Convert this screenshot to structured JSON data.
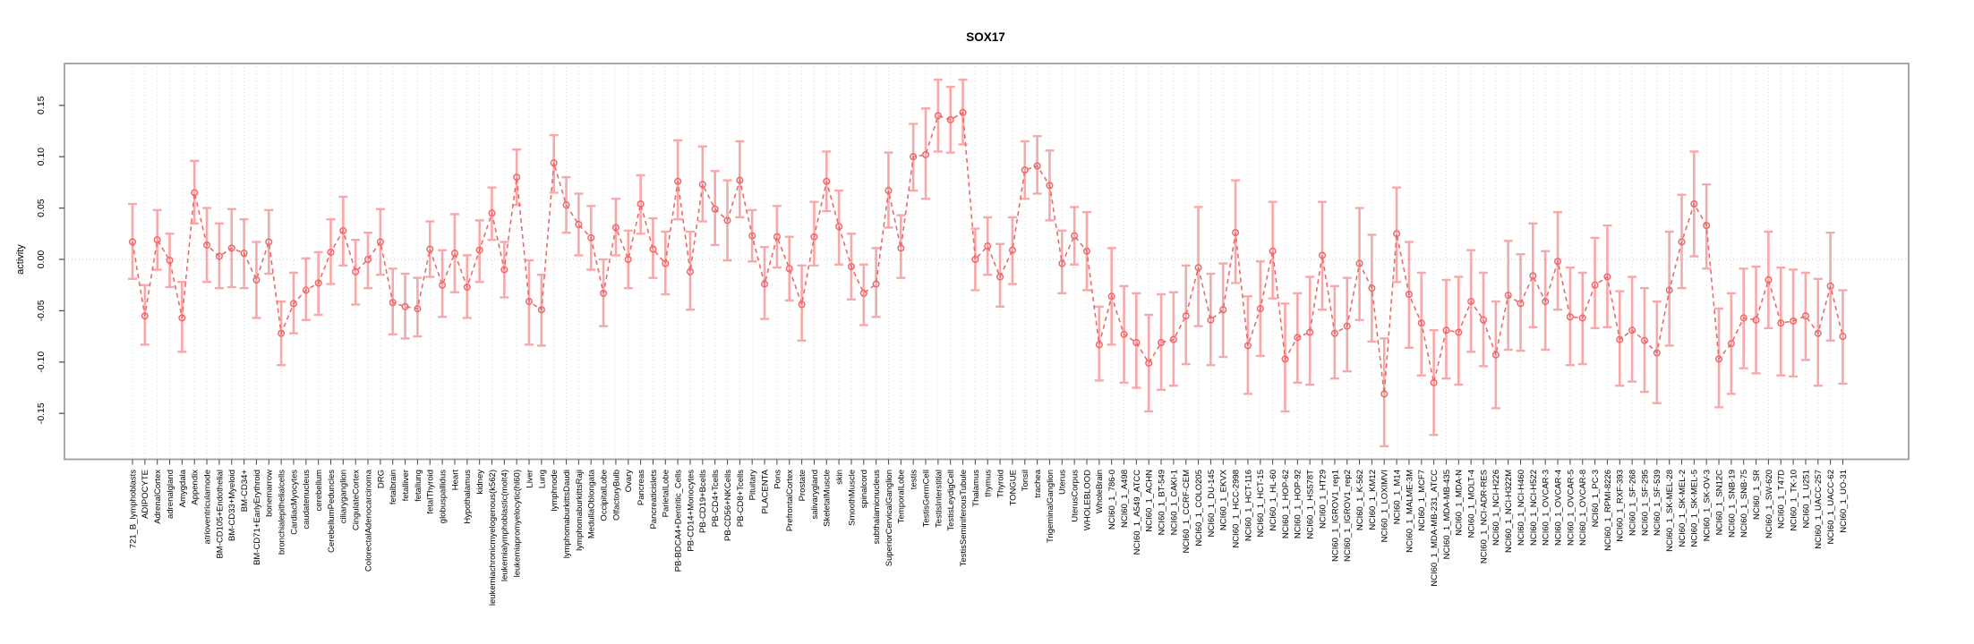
{
  "page": {
    "background": "#ffffff"
  },
  "chart_data": {
    "type": "line",
    "title": "SOX17",
    "xlabel": "",
    "ylabel": "activity",
    "legend": "none",
    "grid": "vertical dotted gridline per category; horizontal dotted line at zero",
    "marker": "open-circle",
    "line_style": "dashed",
    "series_color": "#ee6a6a",
    "errorbar_color": "#f7a8a8",
    "gridline_color": "#dcdcdc",
    "box_color": "#9e9e9e",
    "ylim": [
      -0.19,
      0.19
    ],
    "yticks": [
      -0.15,
      -0.1,
      -0.05,
      0.0,
      0.05,
      0.1,
      0.15
    ],
    "ytick_labels": [
      "-0.15",
      "-0.10",
      "-0.05",
      "0.00",
      "0.05",
      "0.10",
      "0.15"
    ],
    "categories": [
      "721_B_lymphoblasts",
      "ADIPOCYTE",
      "AdrenalCortex",
      "adrenalgland",
      "Amygdala",
      "Appendix",
      "atrioventricularnode",
      "BM-CD105+Endothelial",
      "BM-CD33+Myeloid",
      "BM-CD34+",
      "BM-CD71+EarlyErythroid",
      "bonemarrow",
      "bronchialepithelialcells",
      "CardiacMyocytes",
      "caudatenucleus",
      "cerebellum",
      "CerebellumPeduncles",
      "ciliaryganglion",
      "CingulateCortex",
      "ColorectalAdenocarcinoma",
      "DRG",
      "fetalbrain",
      "fetalliver",
      "fetallung",
      "fetalThyroid",
      "globuspallidus",
      "Heart",
      "Hypothalamus",
      "kidney",
      "leukemiachronicmyelogenous(k562)",
      "leukemialymphoblastic(molt4)",
      "leukemiapromyelocytic(hl60)",
      "Liver",
      "Lung",
      "lymphnode",
      "lymphomaburkittsDaudi",
      "lymphomaburkittsRaji",
      "MedullaOblongata",
      "OccipitalLobe",
      "OlfactoryBulb",
      "Ovary",
      "Pancreas",
      "Pancreaticislets",
      "ParietalLobe",
      "PB-BDCA4+Dentritic_Cells",
      "PB-CD14+Monocytes",
      "PB-CD19+Bcells",
      "PB-CD4+Tcells",
      "PB-CD56+NKCells",
      "PB-CD8+Tcells",
      "Pituitary",
      "PLACENTA",
      "Pons",
      "PrefrontalCortex",
      "Prostate",
      "salivarygland",
      "SkeletalMuscle",
      "skin",
      "SmoothMuscle",
      "spinalcord",
      "subthalamicnucleus",
      "SuperiorCervicalGanglion",
      "TemporalLobe",
      "testis",
      "TestisGermCell",
      "TestisInterstitial",
      "TestisLeydigCell",
      "TestisSeminiferousTubule",
      "Thalamus",
      "thymus",
      "Thyroid",
      "TONGUE",
      "Tonsil",
      "trachea",
      "TrigeminalGanglion",
      "Uterus",
      "UterusCorpus",
      "WHOLEBLOOD",
      "WholeBrain",
      "NCI60_1_786-0",
      "NCI60_1_A498",
      "NCI60_1_A549_ATCC",
      "NCI60_1_ACHN",
      "NCI60_1_BT-549",
      "NCI60_1_CAKI-1",
      "NCI60_1_CCRF-CEM",
      "NCI60_1_COLO205",
      "NCI60_1_DU-145",
      "NCI60_1_EKVX",
      "NCI60_1_HCC-2998",
      "NCI60_1_HCT-116",
      "NCI60_1_HCT-15",
      "NCI60_1_HL-60",
      "NCI60_1_HOP-62",
      "NCI60_1_HOP-92",
      "NCI60_1_HS578T",
      "NCI60_1_HT29",
      "NCI60_1_IGROV1_rep1",
      "NCI60_1_IGROV1_rep2",
      "NCI60_1_K-562",
      "NCI60_1_KM12",
      "NCI60_1_LOXIMVI",
      "NCI60_1_M14",
      "NCI60_1_MALME-3M",
      "NCI60_1_MCF7",
      "NCI60_1_MDA-MB-231_ATCC",
      "NCI60_1_MDA-MB-435",
      "NCI60_1_MDA-N",
      "NCI60_1_MOLT-4",
      "NCI60_1_NCI-ADR-RES",
      "NCI60_1_NCI-H226",
      "NCI60_1_NCI-H322M",
      "NCI60_1_NCI-H460",
      "NCI60_1_NCI-H522",
      "NCI60_1_OVCAR-3",
      "NCI60_1_OVCAR-4",
      "NCI60_1_OVCAR-5",
      "NCI60_1_OVCAR-8",
      "NCI60_1_PC-3",
      "NCI60_1_RPMI-8226",
      "NCI60_1_RXF-393",
      "NCI60_1_SF-268",
      "NCI60_1_SF-295",
      "NCI60_1_SF-539",
      "NCI60_1_SK-MEL-28",
      "NCI60_1_SK-MEL-2",
      "NCI60_1_SK-MEL-5",
      "NCI60_1_SK-OV-3",
      "NCI60_1_SN12C",
      "NCI60_1_SNB-19",
      "NCI60_1_SNB-75",
      "NCI60_1_SR",
      "NCI60_1_SW-620",
      "NCI60_1_T47D",
      "NCI60_1_TK-10",
      "NCI60_1_U251",
      "NCI60_1_UACC-257",
      "NCI60_1_UACC-62",
      "NCI60_1_UO-31"
    ],
    "values": [
      0.017,
      -0.055,
      0.019,
      -0.001,
      -0.057,
      0.065,
      0.014,
      0.003,
      0.011,
      0.006,
      -0.02,
      0.017,
      -0.072,
      -0.043,
      -0.03,
      -0.023,
      0.007,
      0.028,
      -0.012,
      0.0,
      0.017,
      -0.042,
      -0.046,
      -0.048,
      0.01,
      -0.025,
      0.006,
      -0.027,
      0.009,
      0.045,
      -0.01,
      0.08,
      -0.041,
      -0.049,
      0.094,
      0.053,
      0.034,
      0.021,
      -0.033,
      0.031,
      0.0,
      0.054,
      0.01,
      -0.004,
      0.076,
      -0.012,
      0.073,
      0.049,
      0.038,
      0.077,
      0.023,
      -0.024,
      0.022,
      -0.009,
      -0.044,
      0.022,
      0.076,
      0.032,
      -0.007,
      -0.033,
      -0.024,
      0.067,
      0.011,
      0.1,
      0.102,
      0.14,
      0.136,
      0.143,
      0.0,
      0.013,
      -0.017,
      0.009,
      0.087,
      0.091,
      0.072,
      -0.004,
      0.023,
      0.008,
      -0.083,
      -0.036,
      -0.073,
      -0.081,
      -0.101,
      -0.081,
      -0.078,
      -0.055,
      -0.008,
      -0.059,
      -0.049,
      0.026,
      -0.084,
      -0.048,
      0.008,
      -0.097,
      -0.076,
      -0.071,
      0.004,
      -0.072,
      -0.065,
      -0.004,
      -0.028,
      -0.131,
      0.025,
      -0.034,
      -0.062,
      -0.12,
      -0.069,
      -0.071,
      -0.041,
      -0.059,
      -0.093,
      -0.035,
      -0.043,
      -0.016,
      -0.041,
      -0.002,
      -0.056,
      -0.057,
      -0.025,
      -0.017,
      -0.078,
      -0.069,
      -0.079,
      -0.091,
      -0.03,
      0.017,
      0.054,
      0.033,
      -0.097,
      -0.082,
      -0.057,
      -0.059,
      -0.02,
      -0.062,
      -0.06,
      -0.055,
      -0.072,
      -0.026,
      -0.075
    ],
    "err_low": [
      -0.019,
      -0.083,
      -0.01,
      -0.027,
      -0.09,
      0.035,
      -0.022,
      -0.028,
      -0.027,
      -0.028,
      -0.057,
      -0.014,
      -0.103,
      -0.072,
      -0.059,
      -0.054,
      -0.024,
      -0.006,
      -0.044,
      -0.028,
      -0.015,
      -0.073,
      -0.077,
      -0.075,
      -0.017,
      -0.056,
      -0.032,
      -0.057,
      -0.022,
      0.019,
      -0.037,
      0.053,
      -0.083,
      -0.084,
      0.065,
      0.026,
      0.004,
      -0.01,
      -0.065,
      0.004,
      -0.028,
      0.025,
      -0.018,
      -0.034,
      0.039,
      -0.049,
      0.037,
      0.014,
      -0.001,
      0.041,
      -0.002,
      -0.058,
      -0.008,
      -0.04,
      -0.079,
      -0.006,
      0.047,
      -0.005,
      -0.039,
      -0.064,
      -0.056,
      0.031,
      -0.018,
      0.067,
      0.059,
      0.105,
      0.104,
      0.112,
      -0.03,
      -0.015,
      -0.046,
      -0.024,
      0.059,
      0.064,
      0.038,
      -0.033,
      -0.005,
      -0.03,
      -0.118,
      -0.083,
      -0.12,
      -0.125,
      -0.148,
      -0.127,
      -0.123,
      -0.102,
      -0.065,
      -0.103,
      -0.095,
      -0.023,
      -0.131,
      -0.094,
      -0.038,
      -0.148,
      -0.12,
      -0.122,
      -0.049,
      -0.116,
      -0.109,
      -0.059,
      -0.08,
      -0.182,
      -0.022,
      -0.086,
      -0.113,
      -0.171,
      -0.116,
      -0.122,
      -0.09,
      -0.104,
      -0.145,
      -0.088,
      -0.089,
      -0.066,
      -0.088,
      -0.049,
      -0.103,
      -0.102,
      -0.067,
      -0.066,
      -0.123,
      -0.119,
      -0.129,
      -0.14,
      -0.084,
      -0.028,
      0.003,
      -0.009,
      -0.144,
      -0.131,
      -0.106,
      -0.111,
      -0.067,
      -0.113,
      -0.114,
      -0.098,
      -0.123,
      -0.079,
      -0.121
    ],
    "err_high": [
      0.054,
      -0.025,
      0.048,
      0.025,
      -0.022,
      0.096,
      0.05,
      0.035,
      0.049,
      0.039,
      0.017,
      0.048,
      -0.041,
      -0.013,
      0.001,
      0.007,
      0.039,
      0.061,
      0.019,
      0.026,
      0.049,
      -0.009,
      -0.014,
      -0.018,
      0.037,
      0.009,
      0.044,
      0.004,
      0.038,
      0.07,
      0.017,
      0.107,
      -0.001,
      -0.015,
      0.121,
      0.08,
      0.064,
      0.052,
      0.0,
      0.059,
      0.028,
      0.082,
      0.04,
      0.027,
      0.116,
      0.027,
      0.11,
      0.086,
      0.077,
      0.115,
      0.048,
      0.012,
      0.052,
      0.022,
      -0.006,
      0.056,
      0.105,
      0.067,
      0.025,
      -0.005,
      0.011,
      0.104,
      0.043,
      0.132,
      0.147,
      0.175,
      0.168,
      0.175,
      0.03,
      0.041,
      0.015,
      0.041,
      0.115,
      0.12,
      0.106,
      0.028,
      0.051,
      0.046,
      -0.046,
      0.011,
      -0.026,
      -0.033,
      -0.054,
      -0.034,
      -0.032,
      -0.006,
      0.051,
      -0.014,
      -0.004,
      0.077,
      -0.036,
      -0.002,
      0.056,
      -0.043,
      -0.033,
      -0.017,
      0.056,
      -0.026,
      -0.018,
      0.05,
      0.024,
      -0.077,
      0.07,
      0.017,
      -0.013,
      -0.069,
      -0.02,
      -0.017,
      0.009,
      -0.013,
      -0.041,
      0.018,
      0.005,
      0.035,
      0.008,
      0.046,
      -0.008,
      -0.013,
      0.021,
      0.033,
      -0.031,
      -0.017,
      -0.028,
      -0.041,
      0.027,
      0.063,
      0.105,
      0.073,
      -0.048,
      -0.033,
      -0.009,
      -0.007,
      0.027,
      -0.008,
      -0.01,
      -0.013,
      -0.019,
      0.026,
      -0.03
    ]
  }
}
